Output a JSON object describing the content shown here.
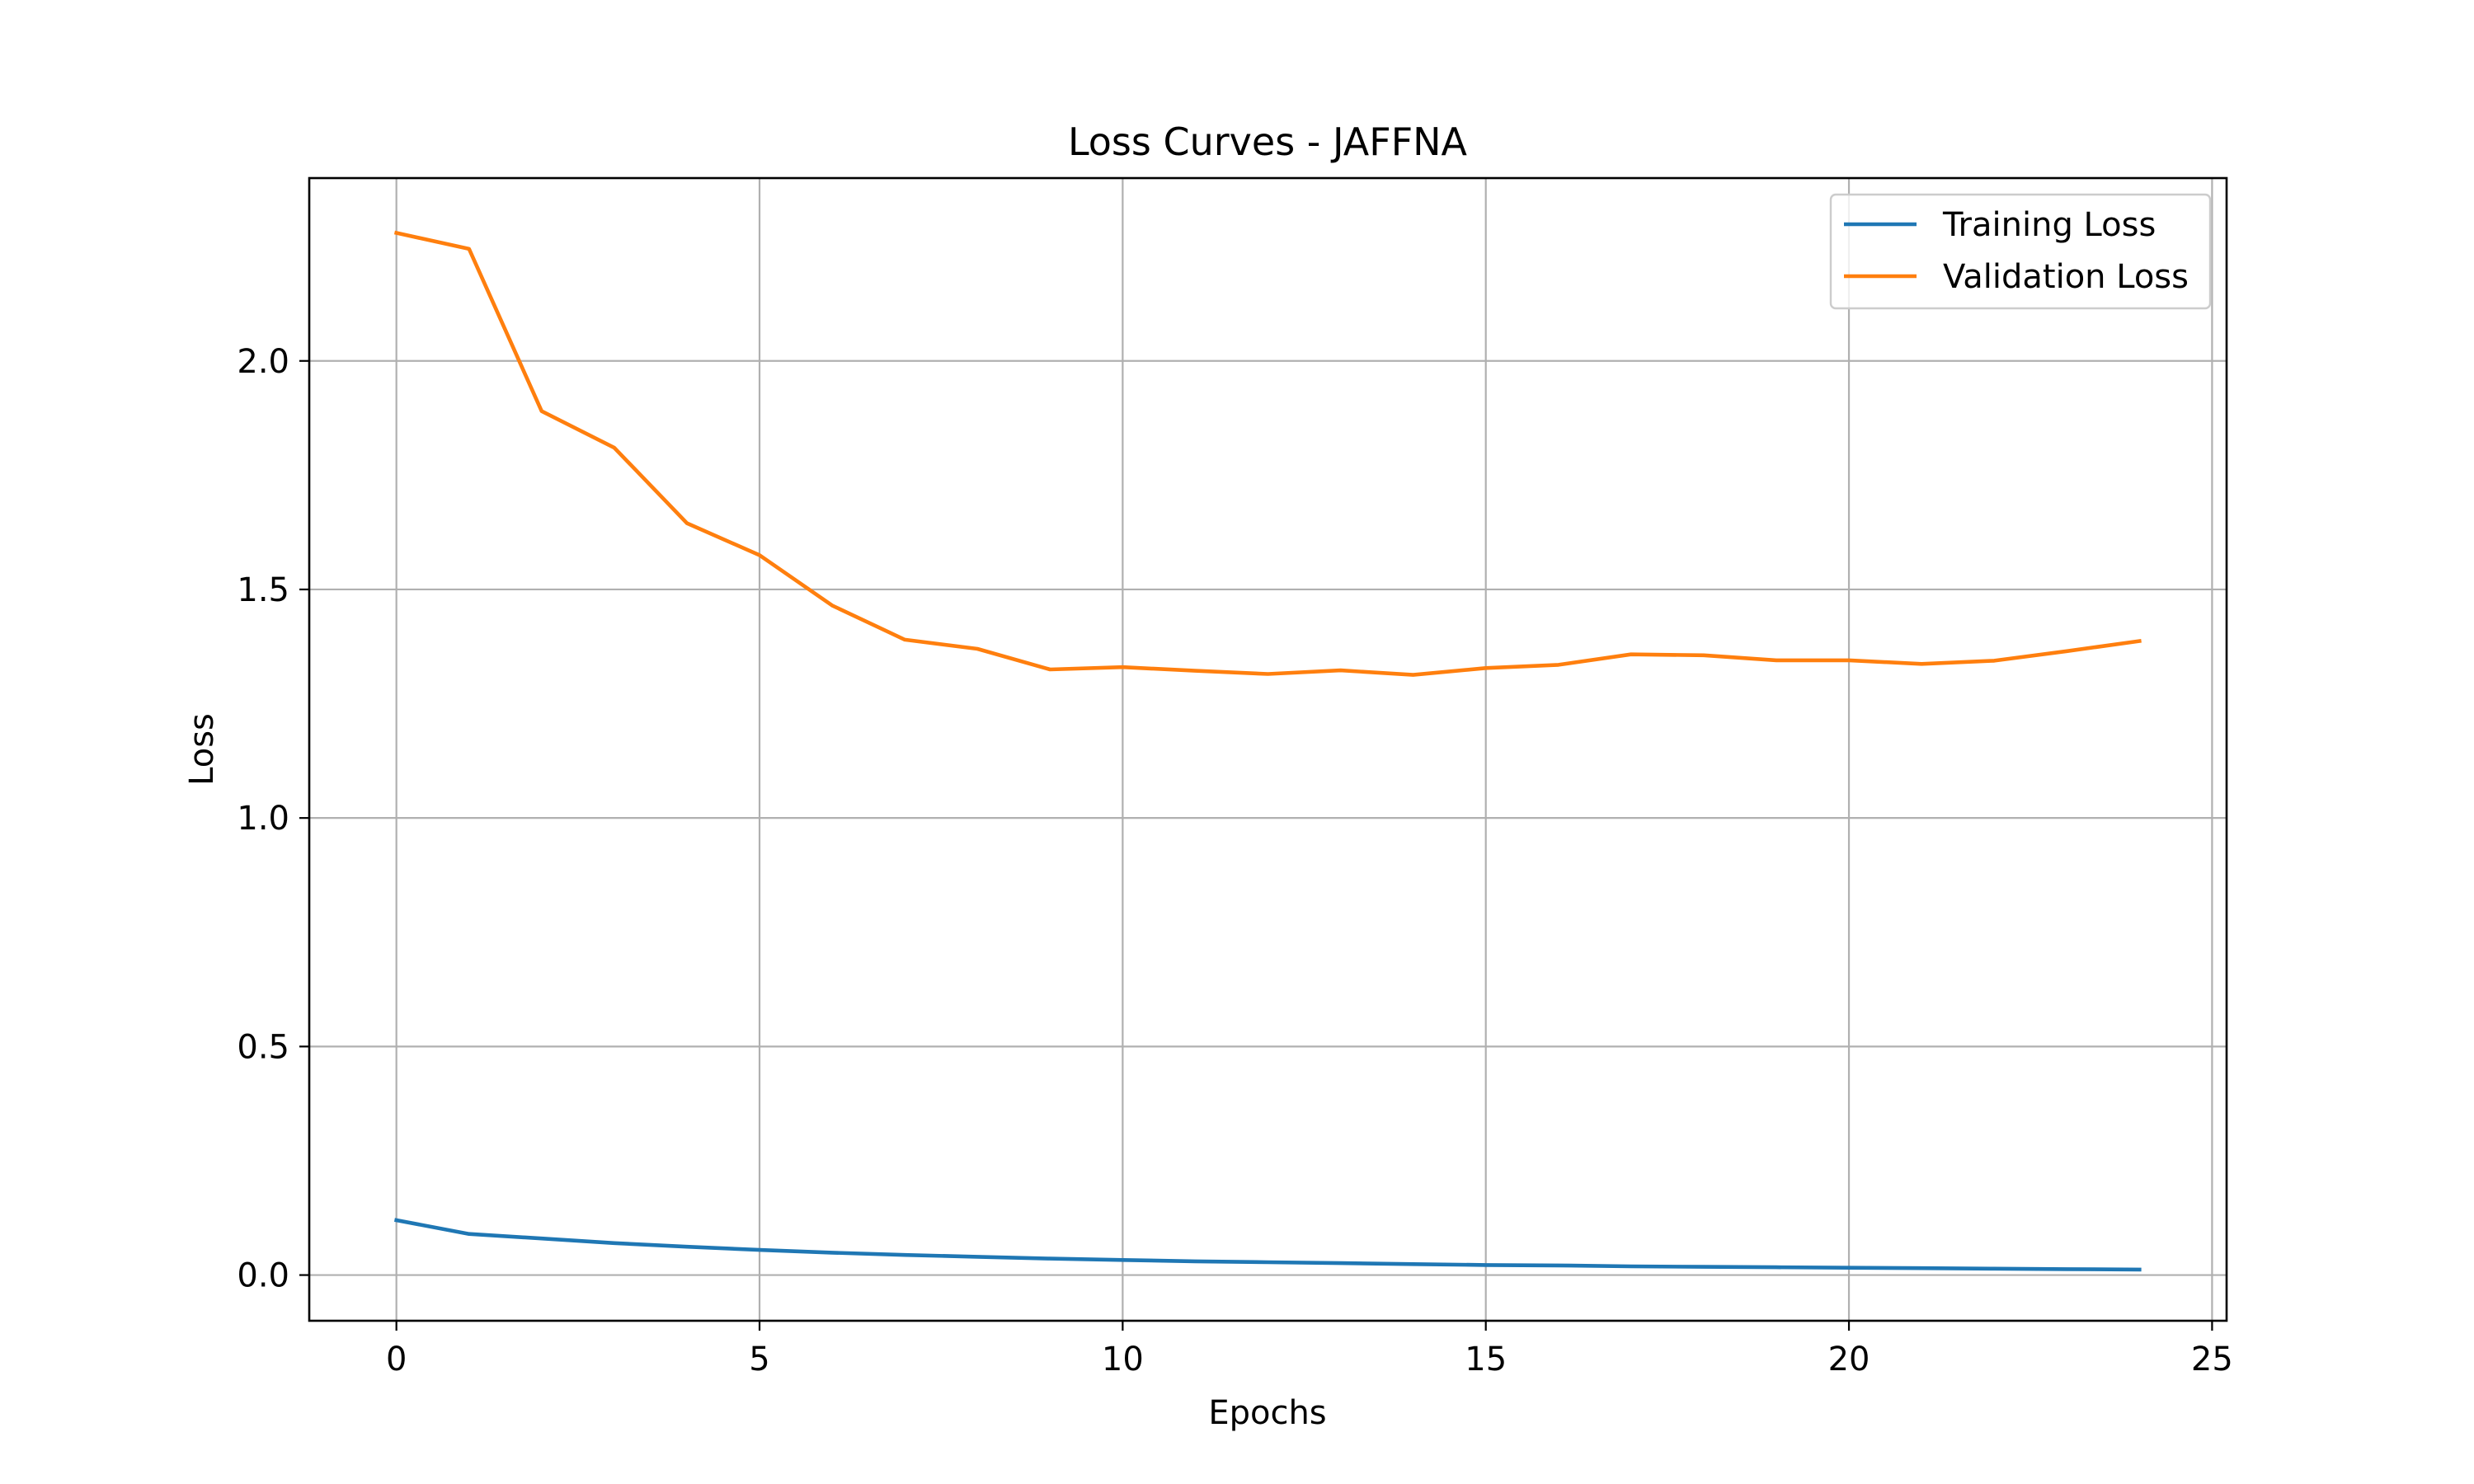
{
  "chart_data": {
    "type": "line",
    "title": "Loss Curves - JAFFNA",
    "xlabel": "Epochs",
    "ylabel": "Loss",
    "xlim": [
      -1.2,
      25.2
    ],
    "ylim": [
      -0.1,
      2.4
    ],
    "xticks": [
      0,
      5,
      10,
      15,
      20,
      25
    ],
    "yticks": [
      0.0,
      0.5,
      1.0,
      1.5,
      2.0
    ],
    "xtick_labels": [
      "0",
      "5",
      "10",
      "15",
      "20",
      "25"
    ],
    "ytick_labels": [
      "0.0",
      "0.5",
      "1.0",
      "1.5",
      "2.0"
    ],
    "grid": true,
    "legend_position": "top-right",
    "x": [
      0,
      1,
      2,
      3,
      4,
      5,
      6,
      7,
      8,
      9,
      10,
      11,
      12,
      13,
      14,
      15,
      16,
      17,
      18,
      19,
      20,
      21,
      22,
      23,
      24
    ],
    "series": [
      {
        "name": "Training Loss",
        "color": "#1f77b4",
        "values": [
          0.12,
          0.09,
          0.08,
          0.07,
          0.062,
          0.055,
          0.049,
          0.044,
          0.04,
          0.036,
          0.033,
          0.03,
          0.028,
          0.026,
          0.024,
          0.022,
          0.021,
          0.019,
          0.018,
          0.017,
          0.016,
          0.015,
          0.014,
          0.013,
          0.012
        ]
      },
      {
        "name": "Validation Loss",
        "color": "#ff7f0e",
        "values": [
          2.28,
          2.245,
          1.89,
          1.81,
          1.645,
          1.575,
          1.465,
          1.39,
          1.37,
          1.325,
          1.33,
          1.322,
          1.315,
          1.323,
          1.313,
          1.328,
          1.335,
          1.358,
          1.356,
          1.345,
          1.345,
          1.337,
          1.344,
          1.365,
          1.387
        ]
      }
    ]
  }
}
